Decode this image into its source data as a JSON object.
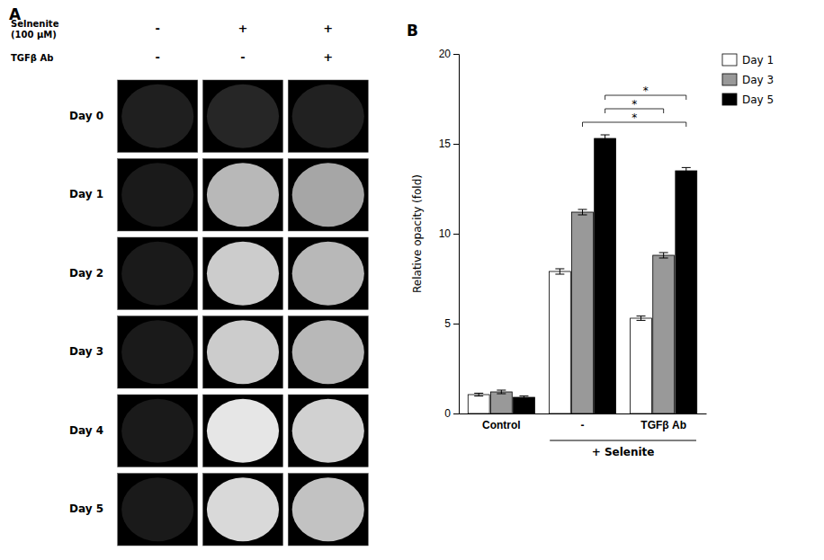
{
  "chart_data": [
    {
      "type": "heatmap",
      "title": "A",
      "column_headers": [
        {
          "label": "Selnenite\n(100 μM)",
          "values": [
            "-",
            "+",
            "+"
          ]
        },
        {
          "label": "TGFβ Ab",
          "values": [
            "-",
            "-",
            "+"
          ]
        }
      ],
      "row_labels": [
        "Day 0",
        "Day 1",
        "Day 2",
        "Day 3",
        "Day 4",
        "Day 5"
      ],
      "cells": [
        [
          0.12,
          0.15,
          0.13
        ],
        [
          0.1,
          0.72,
          0.65
        ],
        [
          0.1,
          0.8,
          0.72
        ],
        [
          0.1,
          0.8,
          0.72
        ],
        [
          0.1,
          0.9,
          0.82
        ],
        [
          0.1,
          0.85,
          0.76
        ]
      ]
    },
    {
      "type": "bar",
      "title": "B",
      "categories": [
        "Control",
        "-",
        "TGFβ Ab"
      ],
      "series": [
        {
          "name": "Day 1",
          "color": "white",
          "values": [
            1.05,
            7.9,
            5.3
          ],
          "errors": [
            0.08,
            0.15,
            0.12
          ]
        },
        {
          "name": "Day 3",
          "color": "#999999",
          "values": [
            1.2,
            11.2,
            8.8
          ],
          "errors": [
            0.1,
            0.15,
            0.15
          ]
        },
        {
          "name": "Day 5",
          "color": "black",
          "values": [
            0.9,
            15.3,
            13.5
          ],
          "errors": [
            0.08,
            0.2,
            0.18
          ]
        }
      ],
      "ylabel": "Relative opacity (fold)",
      "ylim": [
        0,
        20
      ],
      "yticks": [
        0,
        5,
        10,
        15,
        20
      ],
      "grid": false,
      "legend": "right",
      "group_label": {
        "text": "+ Selenite",
        "categories": [
          "-",
          "TGFβ Ab"
        ]
      },
      "significance": [
        {
          "text": "*",
          "from": [
            "-",
            "Day 5"
          ],
          "to": [
            "TGFβ Ab",
            "Day 5"
          ]
        },
        {
          "text": "*",
          "from": [
            "-",
            "Day 5"
          ],
          "to": [
            "TGFβ Ab",
            "Day 3"
          ]
        },
        {
          "text": "*",
          "from": [
            "-",
            "Day 3"
          ],
          "to": [
            "TGFβ Ab",
            "Day 5"
          ]
        }
      ]
    }
  ]
}
